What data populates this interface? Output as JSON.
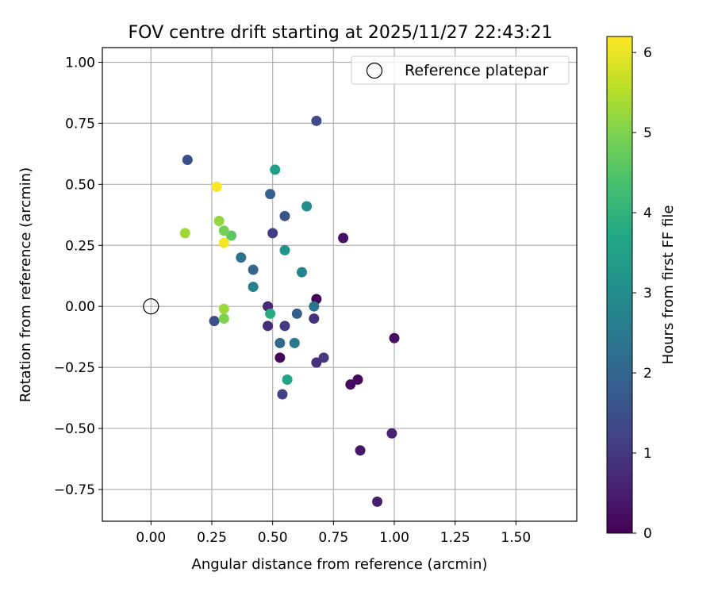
{
  "chart_data": {
    "type": "scatter",
    "title": "FOV centre drift starting at 2025/11/27 22:43:21",
    "xlabel": "Angular distance from reference (arcmin)",
    "ylabel": "Rotation from reference (arcmin)",
    "xlim": [
      -0.2,
      1.75
    ],
    "ylim": [
      -0.88,
      1.06
    ],
    "x_ticks": [
      0.0,
      0.25,
      0.5,
      0.75,
      1.0,
      1.25,
      1.5
    ],
    "x_tick_labels": [
      "0.00",
      "0.25",
      "0.50",
      "0.75",
      "1.00",
      "1.25",
      "1.50"
    ],
    "y_ticks": [
      -0.75,
      -0.5,
      -0.25,
      0.0,
      0.25,
      0.5,
      0.75,
      1.0
    ],
    "y_tick_labels": [
      "−0.75",
      "−0.50",
      "−0.25",
      "0.00",
      "0.25",
      "0.50",
      "0.75",
      "1.00"
    ],
    "grid": true,
    "legend": {
      "placement": "top-right",
      "label": "Reference platepar"
    },
    "reference_point": {
      "x": 0.0,
      "y": 0.0
    },
    "colorbar": {
      "label": "Hours from first FF file",
      "colormap": "viridis",
      "range": [
        0,
        6.2
      ],
      "ticks": [
        0,
        1,
        2,
        3,
        4,
        5,
        6
      ],
      "tick_labels": [
        "0",
        "1",
        "2",
        "3",
        "4",
        "5",
        "6"
      ]
    },
    "points": [
      {
        "x": 0.68,
        "y": 0.03,
        "hours": 0.05
      },
      {
        "x": 0.53,
        "y": -0.21,
        "hours": 0.1
      },
      {
        "x": 0.85,
        "y": -0.3,
        "hours": 0.15
      },
      {
        "x": 0.82,
        "y": -0.32,
        "hours": 0.2
      },
      {
        "x": 1.0,
        "y": -0.13,
        "hours": 0.25
      },
      {
        "x": 0.79,
        "y": 0.28,
        "hours": 0.3
      },
      {
        "x": 0.86,
        "y": -0.59,
        "hours": 0.4
      },
      {
        "x": 0.93,
        "y": -0.8,
        "hours": 0.5
      },
      {
        "x": 0.99,
        "y": -0.52,
        "hours": 0.6
      },
      {
        "x": 0.48,
        "y": 0.0,
        "hours": 0.7
      },
      {
        "x": 0.48,
        "y": -0.08,
        "hours": 0.8
      },
      {
        "x": 0.67,
        "y": -0.05,
        "hours": 0.85
      },
      {
        "x": 0.68,
        "y": -0.23,
        "hours": 0.9
      },
      {
        "x": 0.71,
        "y": -0.21,
        "hours": 1.0
      },
      {
        "x": 0.55,
        "y": -0.08,
        "hours": 1.05
      },
      {
        "x": 0.5,
        "y": 0.3,
        "hours": 1.1
      },
      {
        "x": 0.54,
        "y": -0.36,
        "hours": 1.2
      },
      {
        "x": 0.68,
        "y": 0.76,
        "hours": 1.4
      },
      {
        "x": 0.15,
        "y": 0.6,
        "hours": 1.5
      },
      {
        "x": 0.26,
        "y": -0.06,
        "hours": 1.5
      },
      {
        "x": 0.55,
        "y": 0.37,
        "hours": 1.6
      },
      {
        "x": 0.6,
        "y": -0.03,
        "hours": 1.8
      },
      {
        "x": 0.49,
        "y": 0.46,
        "hours": 1.9
      },
      {
        "x": 0.42,
        "y": 0.15,
        "hours": 2.0
      },
      {
        "x": 0.53,
        "y": -0.15,
        "hours": 2.1
      },
      {
        "x": 0.37,
        "y": 0.2,
        "hours": 2.3
      },
      {
        "x": 0.67,
        "y": 0.0,
        "hours": 2.4
      },
      {
        "x": 0.59,
        "y": -0.15,
        "hours": 2.5
      },
      {
        "x": 0.42,
        "y": 0.08,
        "hours": 2.7
      },
      {
        "x": 0.62,
        "y": 0.14,
        "hours": 2.8
      },
      {
        "x": 0.64,
        "y": 0.41,
        "hours": 3.0
      },
      {
        "x": 0.55,
        "y": 0.23,
        "hours": 3.2
      },
      {
        "x": 0.51,
        "y": 0.56,
        "hours": 3.5
      },
      {
        "x": 0.56,
        "y": -0.3,
        "hours": 3.6
      },
      {
        "x": 0.49,
        "y": -0.03,
        "hours": 3.8
      },
      {
        "x": 0.33,
        "y": 0.29,
        "hours": 4.6
      },
      {
        "x": 0.3,
        "y": 0.31,
        "hours": 4.9
      },
      {
        "x": 0.3,
        "y": -0.05,
        "hours": 5.0
      },
      {
        "x": 0.28,
        "y": 0.35,
        "hours": 5.2
      },
      {
        "x": 0.14,
        "y": 0.3,
        "hours": 5.3
      },
      {
        "x": 0.3,
        "y": -0.01,
        "hours": 5.3
      },
      {
        "x": 0.3,
        "y": 0.26,
        "hours": 6.1
      },
      {
        "x": 0.27,
        "y": 0.49,
        "hours": 6.2
      }
    ]
  }
}
